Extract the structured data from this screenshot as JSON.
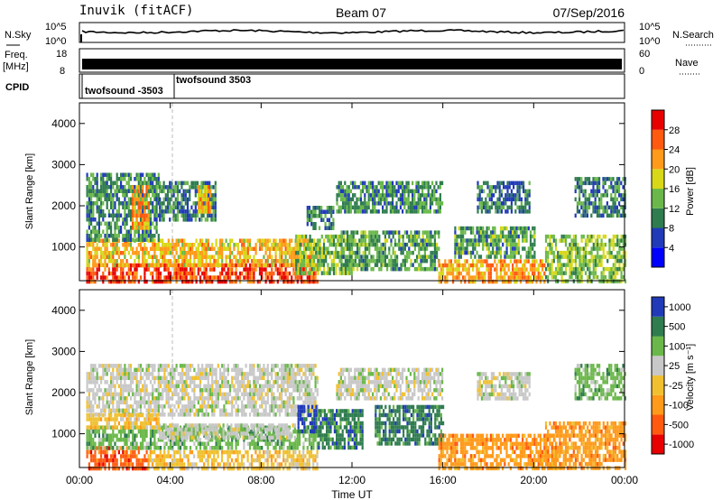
{
  "header": {
    "station": "Inuvik (fitACF)",
    "beam": "Beam 07",
    "date": "07/Sep/2016"
  },
  "top_panels": {
    "nsky_label": "N.Sky",
    "nsky_ticks": [
      "10^5",
      "10^0"
    ],
    "nsearch_label": "N.Search",
    "nsearch_ticks": [
      "10^5",
      "10^0"
    ],
    "freq_label": "Freq.",
    "freq_unit": "[MHz]",
    "freq_ticks": [
      "18",
      "8"
    ],
    "nave_label": "Nave",
    "nave_ticks": [
      "60",
      "0"
    ],
    "cpid_label": "CPID",
    "cpid_entries": [
      "twofsound -3503",
      "twofsound 3503"
    ]
  },
  "x_axis": {
    "label": "Time UT",
    "ticks": [
      "00:00",
      "04:00",
      "08:00",
      "12:00",
      "16:00",
      "20:00",
      "00:00"
    ]
  },
  "colors": {
    "power": [
      "#0000ff",
      "#203ab8",
      "#2f7c4f",
      "#6ab84a",
      "#d8d818",
      "#ff9a1a",
      "#ff5a10",
      "#e80000"
    ],
    "velocity": [
      "#e80000",
      "#ff5a10",
      "#ff9a1a",
      "#f0c030",
      "#c8c8c8",
      "#6ab84a",
      "#2f7c4f",
      "#203ab8"
    ]
  },
  "chart_data": [
    {
      "type": "heatmap",
      "name": "power",
      "ylabel": "Slant Range [km]",
      "xlabel": "",
      "ylim": [
        180,
        4500
      ],
      "yticks": [
        "1000",
        "2000",
        "3000",
        "4000"
      ],
      "colorbar_label": "Power [dB]",
      "colorbar_ticks": [
        "4",
        "8",
        "12",
        "16",
        "20",
        "24",
        "28"
      ],
      "colorbar_range": [
        0,
        32
      ],
      "xlim_hours": [
        0,
        24
      ],
      "regions": [
        {
          "t0": 0.3,
          "t1": 10.5,
          "r0": 180,
          "r1": 600,
          "v": 27
        },
        {
          "t0": 0.3,
          "t1": 10.5,
          "r0": 600,
          "r1": 1200,
          "v": 20
        },
        {
          "t0": 0.3,
          "t1": 3.5,
          "r0": 1200,
          "r1": 2800,
          "v": 11
        },
        {
          "t0": 2.3,
          "t1": 3.0,
          "r0": 1500,
          "r1": 2500,
          "v": 23
        },
        {
          "t0": 3.5,
          "t1": 6.0,
          "r0": 1700,
          "r1": 2600,
          "v": 10
        },
        {
          "t0": 5.2,
          "t1": 5.8,
          "r0": 1900,
          "r1": 2500,
          "v": 21
        },
        {
          "t0": 9.5,
          "t1": 12.0,
          "r0": 400,
          "r1": 1300,
          "v": 14
        },
        {
          "t0": 10.0,
          "t1": 11.2,
          "r0": 1500,
          "r1": 2000,
          "v": 10
        },
        {
          "t0": 11.5,
          "t1": 15.8,
          "r0": 500,
          "r1": 1400,
          "v": 12
        },
        {
          "t0": 11.3,
          "t1": 16.0,
          "r0": 1900,
          "r1": 2600,
          "v": 11
        },
        {
          "t0": 15.8,
          "t1": 20.5,
          "r0": 180,
          "r1": 700,
          "v": 22
        },
        {
          "t0": 16.5,
          "t1": 20.0,
          "r0": 800,
          "r1": 1500,
          "v": 12
        },
        {
          "t0": 17.5,
          "t1": 19.8,
          "r0": 1900,
          "r1": 2600,
          "v": 9
        },
        {
          "t0": 20.5,
          "t1": 24.0,
          "r0": 180,
          "r1": 1300,
          "v": 15
        },
        {
          "t0": 21.8,
          "t1": 24.0,
          "r0": 1800,
          "r1": 2700,
          "v": 10
        }
      ]
    },
    {
      "type": "heatmap",
      "name": "velocity",
      "ylabel": "Slant Range [km]",
      "xlabel": "Time UT",
      "ylim": [
        180,
        4500
      ],
      "yticks": [
        "1000",
        "2000",
        "3000",
        "4000"
      ],
      "colorbar_label": "Velocity [m s⁻¹]",
      "colorbar_ticks": [
        "-1000",
        "-500",
        "-100",
        "-25",
        "25",
        "100",
        "500",
        "1000"
      ],
      "xlim_hours": [
        0,
        24
      ],
      "regions": [
        {
          "t0": 0.3,
          "t1": 3.0,
          "r0": 180,
          "r1": 700,
          "c": 1
        },
        {
          "t0": 0.3,
          "t1": 10.5,
          "r0": 700,
          "r1": 1200,
          "c": 5
        },
        {
          "t0": 3.0,
          "t1": 10.5,
          "r0": 180,
          "r1": 600,
          "c": 3
        },
        {
          "t0": 3.5,
          "t1": 9.5,
          "r0": 950,
          "r1": 1250,
          "c": 4
        },
        {
          "t0": 0.3,
          "t1": 10.5,
          "r0": 1500,
          "r1": 2700,
          "c": 4
        },
        {
          "t0": 0.3,
          "t1": 3.5,
          "r0": 1200,
          "r1": 1500,
          "c": 3
        },
        {
          "t0": 9.6,
          "t1": 10.4,
          "r0": 1100,
          "r1": 1700,
          "c": 7
        },
        {
          "t0": 10.5,
          "t1": 12.5,
          "r0": 700,
          "r1": 1600,
          "c": 6
        },
        {
          "t0": 13.0,
          "t1": 16.0,
          "r0": 800,
          "r1": 1700,
          "c": 6
        },
        {
          "t0": 11.3,
          "t1": 16.0,
          "r0": 1900,
          "r1": 2600,
          "c": 4
        },
        {
          "t0": 15.8,
          "t1": 21.0,
          "r0": 180,
          "r1": 1000,
          "c": 2
        },
        {
          "t0": 17.5,
          "t1": 19.8,
          "r0": 1900,
          "r1": 2500,
          "c": 4
        },
        {
          "t0": 20.5,
          "t1": 24.0,
          "r0": 180,
          "r1": 1300,
          "c": 2
        },
        {
          "t0": 21.8,
          "t1": 24.0,
          "r0": 1900,
          "r1": 2700,
          "c": 5
        }
      ]
    }
  ]
}
